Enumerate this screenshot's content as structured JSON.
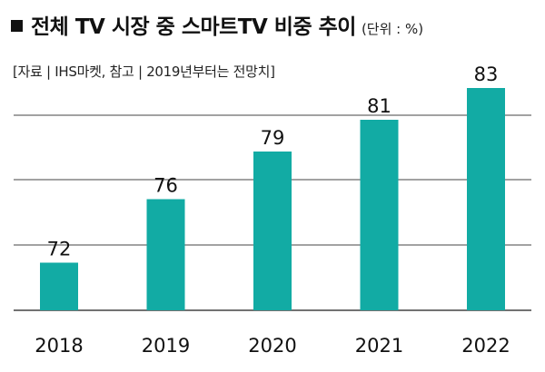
{
  "header": {
    "title": "전체 TV 시장 중 스마트TV 비중 추이",
    "unit": "(단위 : %)",
    "source": "[자료 | IHS마켓, 참고 | 2019년부터는 전망치]"
  },
  "chart_data": {
    "type": "bar",
    "categories": [
      "2018",
      "2019",
      "2020",
      "2021",
      "2022"
    ],
    "values": [
      72,
      76,
      79,
      81,
      83
    ],
    "title": "전체 TV 시장 중 스마트TV 비중 추이",
    "xlabel": "",
    "ylabel": "",
    "ylim": [
      69,
      85
    ],
    "grid": true,
    "bar_color": "#12ABA4",
    "gridline_color": "#444444"
  }
}
